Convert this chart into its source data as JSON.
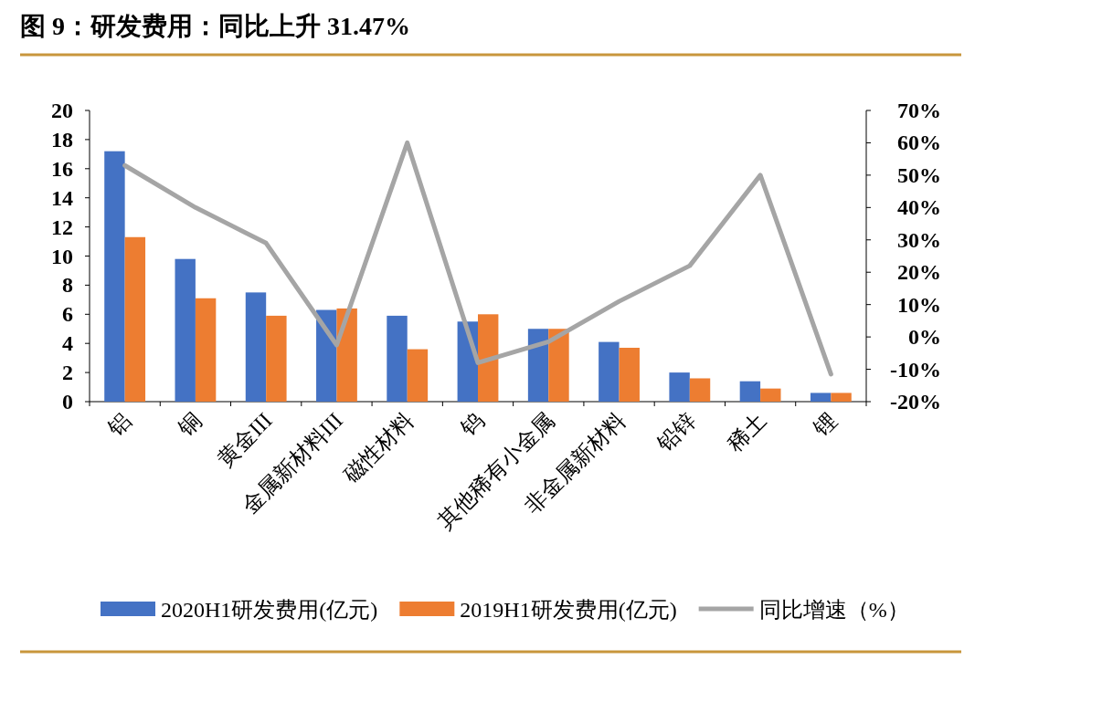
{
  "chart_data": {
    "type": "bar",
    "title": "图 9：研发费用：同比上升 31.47%",
    "categories": [
      "铝",
      "铜",
      "黄金III",
      "金属新材料III",
      "磁性材料",
      "钨",
      "其他稀有小金属",
      "非金属新材料",
      "铅锌",
      "稀土",
      "锂"
    ],
    "series": [
      {
        "name": "2020H1研发费用(亿元)",
        "color": "#4472c4",
        "values": [
          17.2,
          9.8,
          7.5,
          6.3,
          5.9,
          5.5,
          5.0,
          4.1,
          2.0,
          1.4,
          0.6
        ]
      },
      {
        "name": "2019H1研发费用(亿元)",
        "color": "#ed7d31",
        "values": [
          11.3,
          7.1,
          5.9,
          6.4,
          3.6,
          6.0,
          5.0,
          3.7,
          1.6,
          0.9,
          0.6
        ]
      },
      {
        "name": "同比增速（%）",
        "type": "line",
        "axis": "y2",
        "color": "#a5a5a5",
        "values": [
          53,
          40,
          29,
          -2.5,
          60,
          -8,
          -1.5,
          11,
          22,
          50,
          -11.5
        ]
      }
    ],
    "ylim": [
      0,
      20
    ],
    "yticks": [
      0,
      2,
      4,
      6,
      8,
      10,
      12,
      14,
      16,
      18,
      20
    ],
    "y2lim": [
      -20,
      70
    ],
    "y2ticks": [
      {
        "value": -20,
        "label": "-20%"
      },
      {
        "value": -10,
        "label": "-10%"
      },
      {
        "value": 0,
        "label": "0%"
      },
      {
        "value": 10,
        "label": "10%"
      },
      {
        "value": 20,
        "label": "20%"
      },
      {
        "value": 30,
        "label": "30%"
      },
      {
        "value": 40,
        "label": "40%"
      },
      {
        "value": 50,
        "label": "50%"
      },
      {
        "value": 60,
        "label": "60%"
      },
      {
        "value": 70,
        "label": "70%"
      }
    ],
    "grid": false,
    "legend": "bottom",
    "marker": "none",
    "line_style": "solid"
  }
}
